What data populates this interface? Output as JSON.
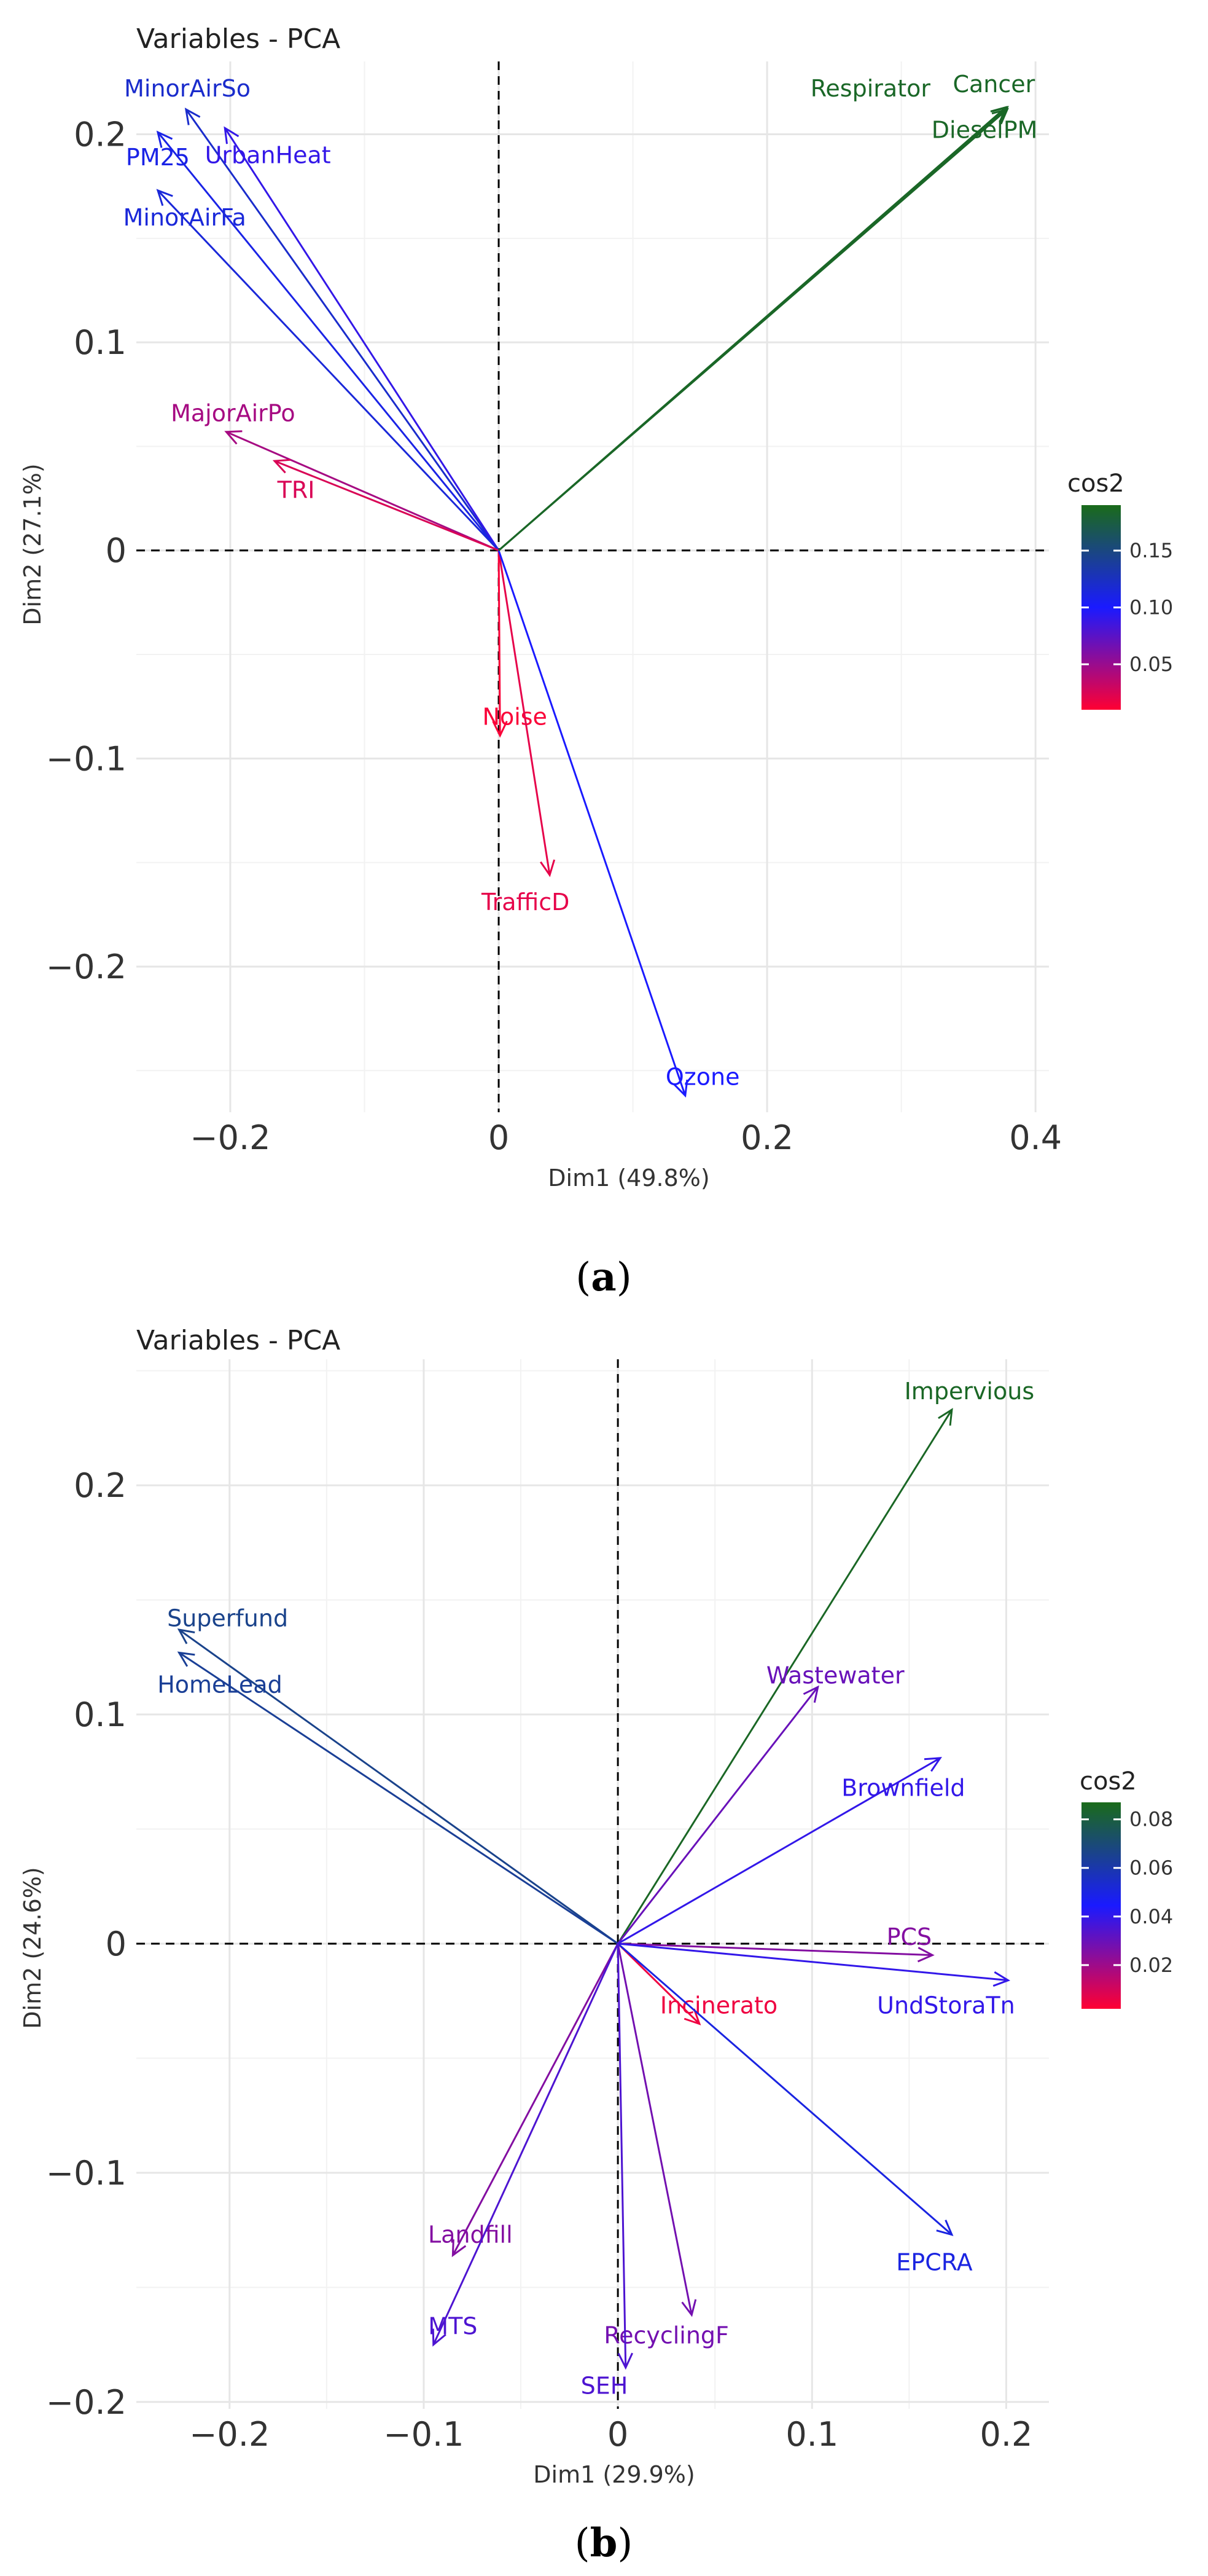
{
  "colorscale": {
    "high": "#1a6b1a",
    "mid": "#1a1aff",
    "low": "#ff0033"
  },
  "chart_data": [
    {
      "type": "scatter",
      "subtype": "pca-variable-arrows",
      "panel_caption": "a",
      "title": "Variables - PCA",
      "xlabel": "Dim1 (49.8%)",
      "ylabel": "Dim2 (27.1%)",
      "xlim": [
        -0.27,
        0.41
      ],
      "ylim": [
        -0.27,
        0.235
      ],
      "x_ticks": [
        -0.2,
        0,
        0.2,
        0.4
      ],
      "x_tick_labels": [
        "−0.2",
        "0",
        "0.2",
        "0.4"
      ],
      "y_ticks": [
        -0.2,
        -0.1,
        0,
        0.1,
        0.2
      ],
      "y_tick_labels": [
        "−0.2",
        "−0.1",
        "0",
        "0.1",
        "0.2"
      ],
      "legend": {
        "title": "cos2",
        "ticks": [
          0.05,
          0.1,
          0.15
        ],
        "tick_labels": [
          "0.05",
          "0.10",
          "0.15"
        ],
        "range": [
          0.01,
          0.19
        ],
        "placement": "right"
      },
      "variables": [
        {
          "name": "MinorAirSo",
          "x": -0.233,
          "y": 0.212,
          "cos2": 0.12,
          "lx": -0.232,
          "ly": 0.222
        },
        {
          "name": "UrbanHeat",
          "x": -0.204,
          "y": 0.203,
          "cos2": 0.09,
          "lx": -0.172,
          "ly": 0.19
        },
        {
          "name": "PM25",
          "x": -0.254,
          "y": 0.201,
          "cos2": 0.11,
          "lx": -0.254,
          "ly": 0.189
        },
        {
          "name": "MinorAirFa",
          "x": -0.254,
          "y": 0.173,
          "cos2": 0.115,
          "lx": -0.234,
          "ly": 0.16
        },
        {
          "name": "MajorAirPo",
          "x": -0.203,
          "y": 0.057,
          "cos2": 0.045,
          "lx": -0.198,
          "ly": 0.066
        },
        {
          "name": "TRI",
          "x": -0.167,
          "y": 0.043,
          "cos2": 0.025,
          "lx": -0.151,
          "ly": 0.029
        },
        {
          "name": "Noise",
          "x": 0.001,
          "y": -0.089,
          "cos2": 0.012,
          "lx": 0.012,
          "ly": -0.08
        },
        {
          "name": "TrafficD",
          "x": 0.038,
          "y": -0.156,
          "cos2": 0.02,
          "lx": 0.02,
          "ly": -0.169
        },
        {
          "name": "Ozone",
          "x": 0.139,
          "y": -0.262,
          "cos2": 0.1,
          "lx": 0.152,
          "ly": -0.253
        },
        {
          "name": "Respirator",
          "x": 0.378,
          "y": 0.213,
          "cos2": 0.185,
          "lx": 0.277,
          "ly": 0.222
        },
        {
          "name": "Cancer",
          "x": 0.379,
          "y": 0.213,
          "cos2": 0.185,
          "lx": 0.369,
          "ly": 0.224
        },
        {
          "name": "DieselPM",
          "x": 0.379,
          "y": 0.212,
          "cos2": 0.185,
          "lx": 0.362,
          "ly": 0.202
        }
      ]
    },
    {
      "type": "scatter",
      "subtype": "pca-variable-arrows",
      "panel_caption": "b",
      "title": "Variables - PCA",
      "xlabel": "Dim1 (29.9%)",
      "ylabel": "Dim2 (24.6%)",
      "xlim": [
        -0.248,
        0.222
      ],
      "ylim": [
        -0.203,
        0.255
      ],
      "x_ticks": [
        -0.2,
        -0.1,
        0,
        0.1,
        0.2
      ],
      "x_tick_labels": [
        "−0.2",
        "−0.1",
        "0",
        "0.1",
        "0.2"
      ],
      "y_ticks": [
        -0.2,
        -0.1,
        0,
        0.1,
        0.2
      ],
      "y_tick_labels": [
        "−0.2",
        "−0.1",
        "0",
        "0.1",
        "0.2"
      ],
      "legend": {
        "title": "cos2",
        "ticks": [
          0.02,
          0.04,
          0.06,
          0.08
        ],
        "tick_labels": [
          "0.02",
          "0.04",
          "0.06",
          "0.08"
        ],
        "range": [
          0.002,
          0.087
        ],
        "placement": "right"
      },
      "variables": [
        {
          "name": "Impervious",
          "x": 0.172,
          "y": 0.233,
          "cos2": 0.085,
          "lx": 0.181,
          "ly": 0.241
        },
        {
          "name": "Superfund",
          "x": -0.226,
          "y": 0.137,
          "cos2": 0.066,
          "lx": -0.201,
          "ly": 0.142
        },
        {
          "name": "HomeLead",
          "x": -0.226,
          "y": 0.127,
          "cos2": 0.064,
          "lx": -0.205,
          "ly": 0.113
        },
        {
          "name": "Wastewater",
          "x": 0.103,
          "y": 0.112,
          "cos2": 0.03,
          "lx": 0.112,
          "ly": 0.117
        },
        {
          "name": "Brownfield",
          "x": 0.166,
          "y": 0.081,
          "cos2": 0.04,
          "lx": 0.147,
          "ly": 0.068
        },
        {
          "name": "PCS",
          "x": 0.162,
          "y": -0.005,
          "cos2": 0.025,
          "lx": 0.15,
          "ly": 0.003
        },
        {
          "name": "UndStoraTn",
          "x": 0.201,
          "y": -0.016,
          "cos2": 0.04,
          "lx": 0.169,
          "ly": -0.027
        },
        {
          "name": "Incinerato",
          "x": 0.042,
          "y": -0.035,
          "cos2": 0.005,
          "lx": 0.052,
          "ly": -0.027
        },
        {
          "name": "EPCRA",
          "x": 0.172,
          "y": -0.127,
          "cos2": 0.05,
          "lx": 0.163,
          "ly": -0.139
        },
        {
          "name": "Landfill",
          "x": -0.085,
          "y": -0.136,
          "cos2": 0.025,
          "lx": -0.076,
          "ly": -0.127
        },
        {
          "name": "MTS",
          "x": -0.095,
          "y": -0.175,
          "cos2": 0.035,
          "lx": -0.085,
          "ly": -0.167
        },
        {
          "name": "RecyclingF",
          "x": 0.038,
          "y": -0.162,
          "cos2": 0.028,
          "lx": 0.025,
          "ly": -0.171
        },
        {
          "name": "SEH",
          "x": 0.004,
          "y": -0.185,
          "cos2": 0.035,
          "lx": -0.007,
          "ly": -0.193
        }
      ]
    }
  ]
}
